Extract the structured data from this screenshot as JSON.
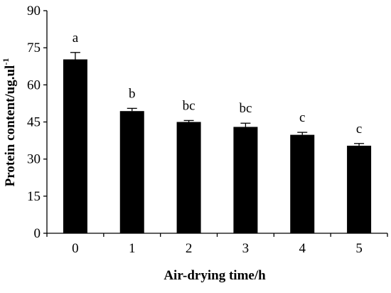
{
  "chart_data": {
    "type": "bar",
    "categories": [
      "0",
      "1",
      "2",
      "3",
      "4",
      "5"
    ],
    "values": [
      70.3,
      49.4,
      45.0,
      43.0,
      39.8,
      35.4
    ],
    "errors": [
      2.8,
      1.1,
      0.6,
      1.5,
      1.0,
      0.9
    ],
    "significance_labels": [
      "a",
      "b",
      "bc",
      "bc",
      "c",
      "c"
    ],
    "xlabel": "Air-drying time/h",
    "ylabel": "Protein content/ug.ul",
    "ylabel_superscript": "-1",
    "ylim": [
      0,
      90
    ],
    "yticks": [
      "0",
      "15",
      "30",
      "45",
      "60",
      "75",
      "90"
    ],
    "grid": false,
    "colors": {
      "bar": "#000000",
      "axis": "#000000"
    }
  }
}
